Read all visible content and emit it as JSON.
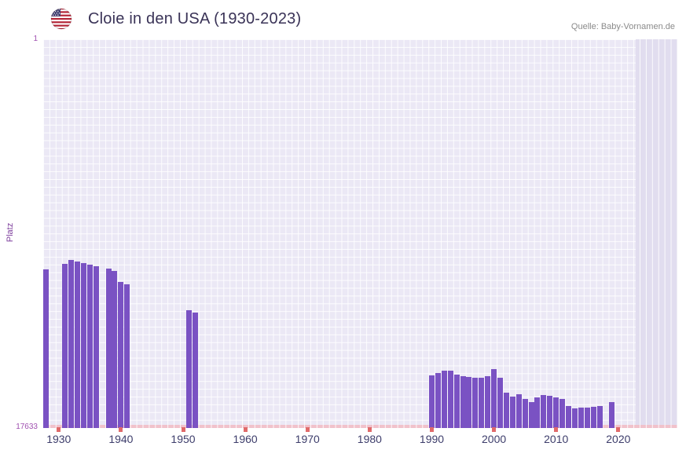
{
  "header": {
    "title": "Cloie in den USA (1930-2023)",
    "source": "Quelle: Baby-Vornamen.de",
    "flag_icon": "us-flag-icon"
  },
  "colors": {
    "bar": "#7a52c3",
    "plot_bg": "#ebe8f5",
    "plot_bg_shaded": "#e1ddef",
    "grid_line": "#ffffff",
    "baseline": "#f1c2cb",
    "decade_tick": "#e06a6a",
    "x_tick_text": "#3d3d6b",
    "y_tick_text": "#a050b0",
    "y_label_text": "#7e3f9d",
    "title_text": "#3a3357",
    "source_text": "#8a8a8a"
  },
  "chart_data": {
    "type": "bar",
    "title": "Cloie in den USA (1930-2023)",
    "xlabel": "",
    "ylabel": "Platz",
    "grid": true,
    "legend": false,
    "y_axis": {
      "top_label": "1",
      "bottom_label": "17633",
      "min": 1,
      "max": 17633,
      "inverted": true,
      "note": "rank axis: 1 = best at top, bars grow upward from bottom; taller bar = better rank"
    },
    "x_axis": {
      "min": 1927.5,
      "max": 2029.5,
      "ticks": [
        1930,
        1940,
        1950,
        1960,
        1970,
        1980,
        1990,
        2000,
        2010,
        2020
      ]
    },
    "shaded_region": {
      "from": 2022.8,
      "to": 2029.5
    },
    "series": [
      {
        "name": "Platz",
        "points": [
          {
            "year": 1928,
            "rank": 10440
          },
          {
            "year": 1931,
            "rank": 10190
          },
          {
            "year": 1932,
            "rank": 10010
          },
          {
            "year": 1933,
            "rank": 10080
          },
          {
            "year": 1934,
            "rank": 10150
          },
          {
            "year": 1935,
            "rank": 10220
          },
          {
            "year": 1936,
            "rank": 10290
          },
          {
            "year": 1938,
            "rank": 10400
          },
          {
            "year": 1939,
            "rank": 10510
          },
          {
            "year": 1940,
            "rank": 11010
          },
          {
            "year": 1941,
            "rank": 11110
          },
          {
            "year": 1951,
            "rank": 12290
          },
          {
            "year": 1952,
            "rank": 12400
          },
          {
            "year": 1990,
            "rank": 15250
          },
          {
            "year": 1991,
            "rank": 15140
          },
          {
            "year": 1992,
            "rank": 15030
          },
          {
            "year": 1993,
            "rank": 15030
          },
          {
            "year": 1994,
            "rank": 15210
          },
          {
            "year": 1995,
            "rank": 15280
          },
          {
            "year": 1996,
            "rank": 15320
          },
          {
            "year": 1997,
            "rank": 15350
          },
          {
            "year": 1998,
            "rank": 15350
          },
          {
            "year": 1999,
            "rank": 15280
          },
          {
            "year": 2000,
            "rank": 14960
          },
          {
            "year": 2001,
            "rank": 15350
          },
          {
            "year": 2002,
            "rank": 16030
          },
          {
            "year": 2003,
            "rank": 16210
          },
          {
            "year": 2004,
            "rank": 16100
          },
          {
            "year": 2005,
            "rank": 16310
          },
          {
            "year": 2006,
            "rank": 16460
          },
          {
            "year": 2007,
            "rank": 16240
          },
          {
            "year": 2008,
            "rank": 16140
          },
          {
            "year": 2009,
            "rank": 16170
          },
          {
            "year": 2010,
            "rank": 16240
          },
          {
            "year": 2011,
            "rank": 16310
          },
          {
            "year": 2012,
            "rank": 16640
          },
          {
            "year": 2013,
            "rank": 16740
          },
          {
            "year": 2014,
            "rank": 16710
          },
          {
            "year": 2015,
            "rank": 16710
          },
          {
            "year": 2016,
            "rank": 16670
          },
          {
            "year": 2017,
            "rank": 16640
          },
          {
            "year": 2019,
            "rank": 16460
          }
        ]
      }
    ]
  }
}
